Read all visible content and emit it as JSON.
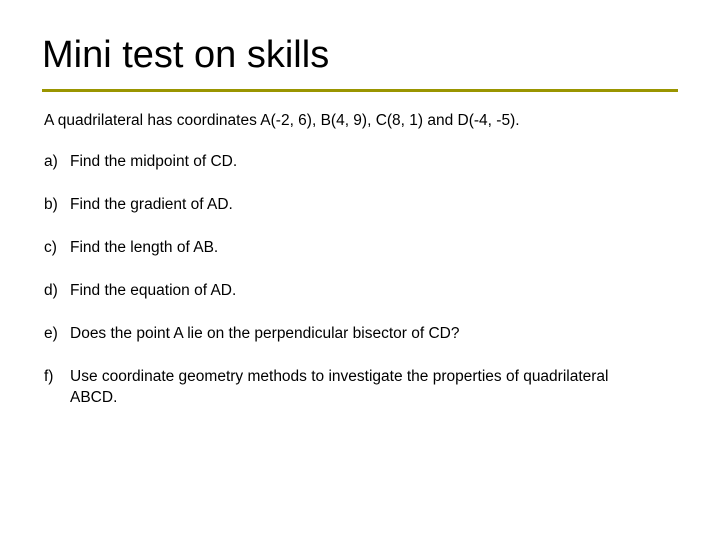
{
  "colors": {
    "accent": "#9a9500",
    "text": "#000000",
    "background": "#ffffff"
  },
  "typography": {
    "title_fontsize": 38,
    "body_fontsize": 15.5,
    "font_family": "Arial"
  },
  "title": "Mini test on skills",
  "intro": "A quadrilateral has coordinates A(-2, 6), B(4, 9), C(8, 1) and D(-4, -5).",
  "items": [
    {
      "label": "a)",
      "text": "Find the midpoint of CD."
    },
    {
      "label": "b)",
      "text": "Find the gradient of AD."
    },
    {
      "label": "c)",
      "text": "Find the length of AB."
    },
    {
      "label": "d)",
      "text": "Find the equation of AD."
    },
    {
      "label": "e)",
      "text": "Does the point A lie on the perpendicular bisector of CD?"
    },
    {
      "label": "f)",
      "text": "Use coordinate geometry methods to investigate the properties of quadrilateral ABCD."
    }
  ]
}
